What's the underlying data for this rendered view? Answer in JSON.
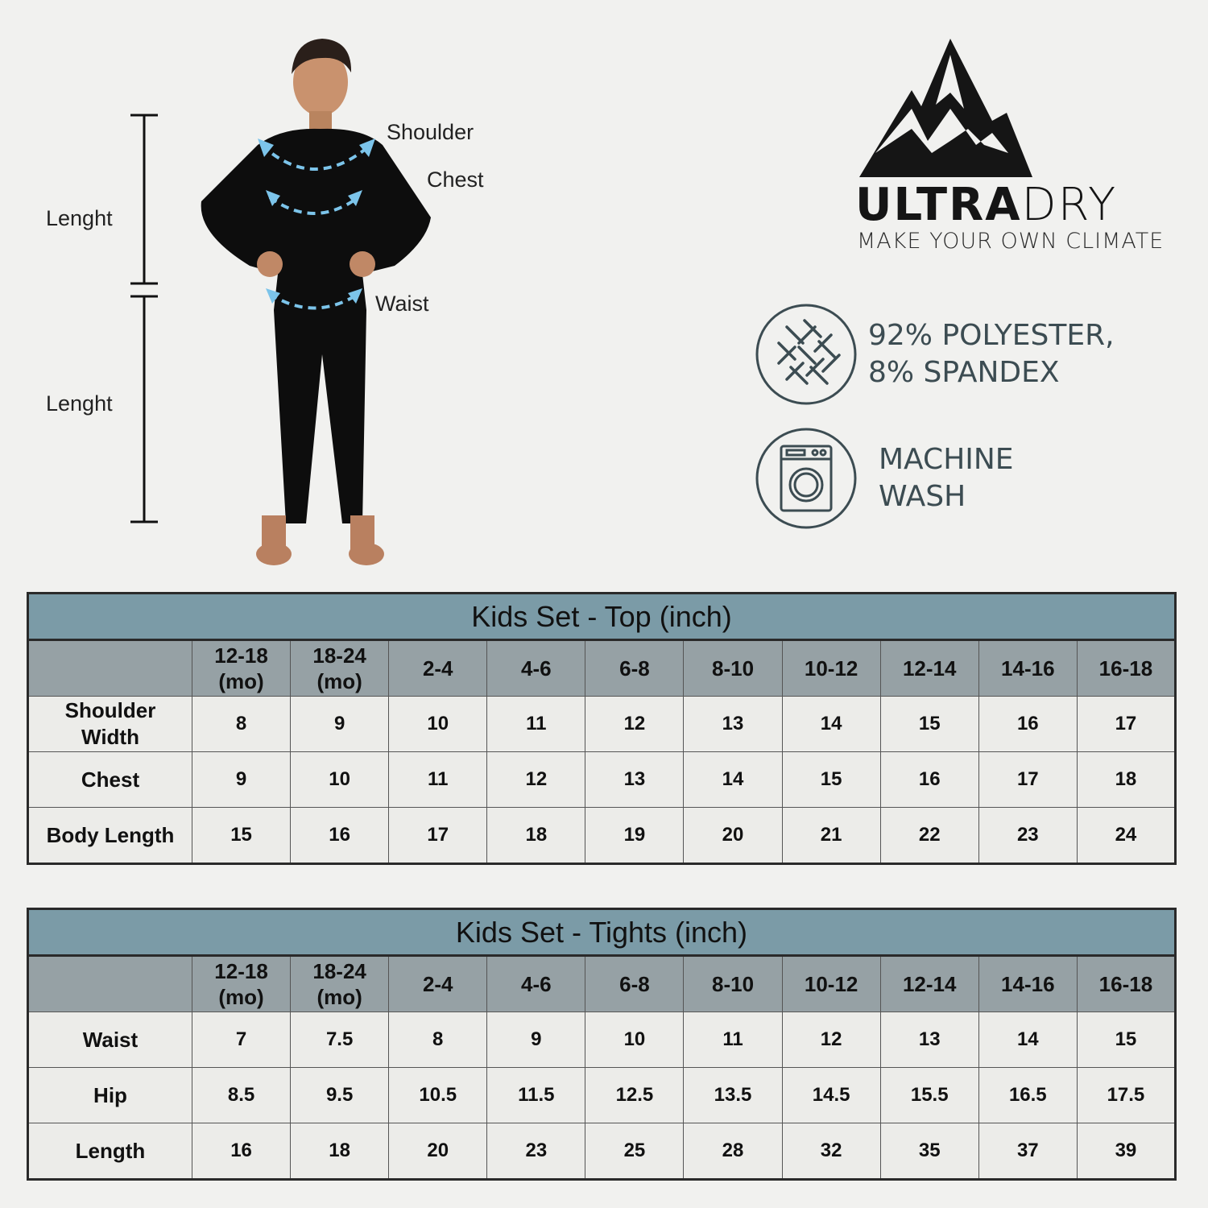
{
  "figure": {
    "labels": {
      "length_top": "Lenght",
      "length_bottom": "Lenght",
      "shoulder": "Shoulder",
      "chest": "Chest",
      "waist": "Waist"
    },
    "arrow_color": "#7cc4ea"
  },
  "brand": {
    "name_bold": "ULTRA",
    "name_light": "DRY",
    "tagline": "MAKE YOUR OWN CLIMATE"
  },
  "features": [
    {
      "icon": "fabric-weave-icon",
      "line1": "92% POLYESTER,",
      "line2": "8% SPANDEX"
    },
    {
      "icon": "washing-machine-icon",
      "line1": "MACHINE",
      "line2": "WASH"
    }
  ],
  "colors": {
    "title_bar": "#7b9ba7",
    "header_row": "#96a1a5",
    "cell": "#ecece9",
    "icon": "#3c4c52"
  },
  "tables": [
    {
      "title": "Kids Set - Top (inch)",
      "columns": [
        [
          "12-18",
          "(mo)"
        ],
        [
          "18-24",
          "(mo)"
        ],
        [
          "2-4"
        ],
        [
          "4-6"
        ],
        [
          "6-8"
        ],
        [
          "8-10"
        ],
        [
          "10-12"
        ],
        [
          "12-14"
        ],
        [
          "14-16"
        ],
        [
          "16-18"
        ]
      ],
      "rows": [
        {
          "label": [
            "Shoulder",
            "Width"
          ],
          "values": [
            "8",
            "9",
            "10",
            "11",
            "12",
            "13",
            "14",
            "15",
            "16",
            "17"
          ]
        },
        {
          "label": [
            "Chest"
          ],
          "values": [
            "9",
            "10",
            "11",
            "12",
            "13",
            "14",
            "15",
            "16",
            "17",
            "18"
          ]
        },
        {
          "label": [
            "Body Length"
          ],
          "values": [
            "15",
            "16",
            "17",
            "18",
            "19",
            "20",
            "21",
            "22",
            "23",
            "24"
          ]
        }
      ]
    },
    {
      "title": "Kids Set - Tights (inch)",
      "columns": [
        [
          "12-18",
          "(mo)"
        ],
        [
          "18-24",
          "(mo)"
        ],
        [
          "2-4"
        ],
        [
          "4-6"
        ],
        [
          "6-8"
        ],
        [
          "8-10"
        ],
        [
          "10-12"
        ],
        [
          "12-14"
        ],
        [
          "14-16"
        ],
        [
          "16-18"
        ]
      ],
      "rows": [
        {
          "label": [
            "Waist"
          ],
          "values": [
            "7",
            "7.5",
            "8",
            "9",
            "10",
            "11",
            "12",
            "13",
            "14",
            "15"
          ]
        },
        {
          "label": [
            "Hip"
          ],
          "values": [
            "8.5",
            "9.5",
            "10.5",
            "11.5",
            "12.5",
            "13.5",
            "14.5",
            "15.5",
            "16.5",
            "17.5"
          ]
        },
        {
          "label": [
            "Length"
          ],
          "values": [
            "16",
            "18",
            "20",
            "23",
            "25",
            "28",
            "32",
            "35",
            "37",
            "39"
          ]
        }
      ]
    }
  ]
}
